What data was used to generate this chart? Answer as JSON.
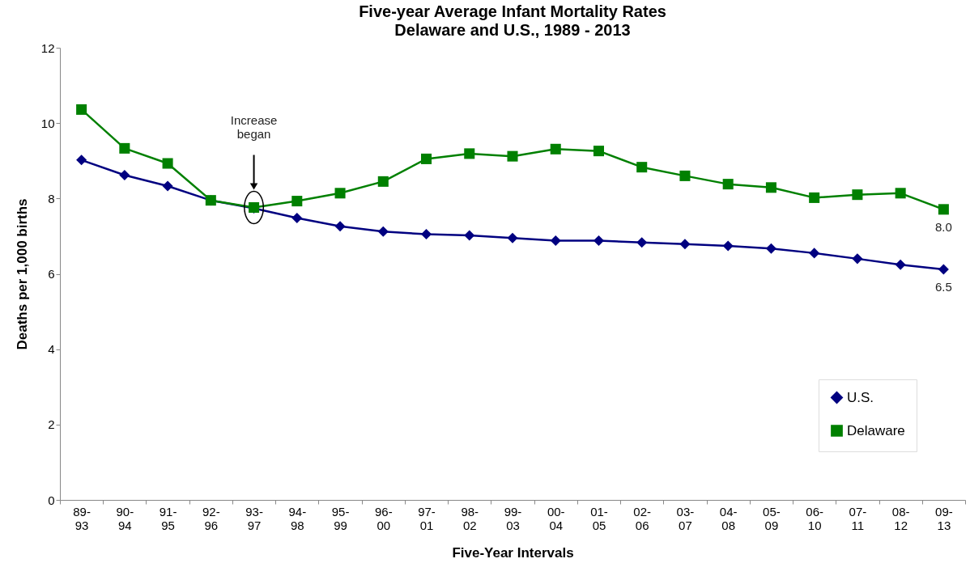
{
  "chart_data": {
    "type": "line",
    "title": "Five-year Average Infant Mortality  Rates",
    "subtitle": "Delaware and U.S., 1989 - 2013",
    "xlabel": "Five-Year Intervals",
    "ylabel": "Deaths per 1,000 births",
    "categories": [
      "89-93",
      "90-94",
      "91-95",
      "92-96",
      "93-97",
      "94-98",
      "95-99",
      "96-00",
      "97-01",
      "98-02",
      "99-03",
      "00-04",
      "01-05",
      "02-06",
      "03-07",
      "04-08",
      "05-09",
      "06-10",
      "07-11",
      "08-12",
      "09-13"
    ],
    "series": [
      {
        "name": "U.S.",
        "color": "#000080",
        "marker": "diamond",
        "values": [
          9.02,
          8.62,
          8.33,
          7.95,
          7.74,
          7.48,
          7.26,
          7.12,
          7.05,
          7.02,
          6.95,
          6.88,
          6.88,
          6.83,
          6.79,
          6.74,
          6.67,
          6.55,
          6.4,
          6.24,
          6.12
        ]
      },
      {
        "name": "Delaware",
        "color": "#008000",
        "marker": "square",
        "values": [
          10.36,
          9.33,
          8.93,
          7.95,
          7.76,
          7.93,
          8.14,
          8.45,
          9.05,
          9.19,
          9.12,
          9.31,
          9.26,
          8.83,
          8.6,
          8.38,
          8.29,
          8.02,
          8.1,
          8.14,
          7.71
        ]
      }
    ],
    "annotations": [
      "Increase began",
      {
        "text": "8.0",
        "x": "09-13",
        "y": 7.71
      },
      {
        "text": "6.5",
        "x": "09-13",
        "y": 6.12
      }
    ],
    "ylim": [
      0,
      12
    ],
    "yticks": [
      0,
      2,
      4,
      6,
      8,
      10,
      12
    ],
    "grid": false,
    "legend": "bottom right",
    "line_style": "solid"
  }
}
